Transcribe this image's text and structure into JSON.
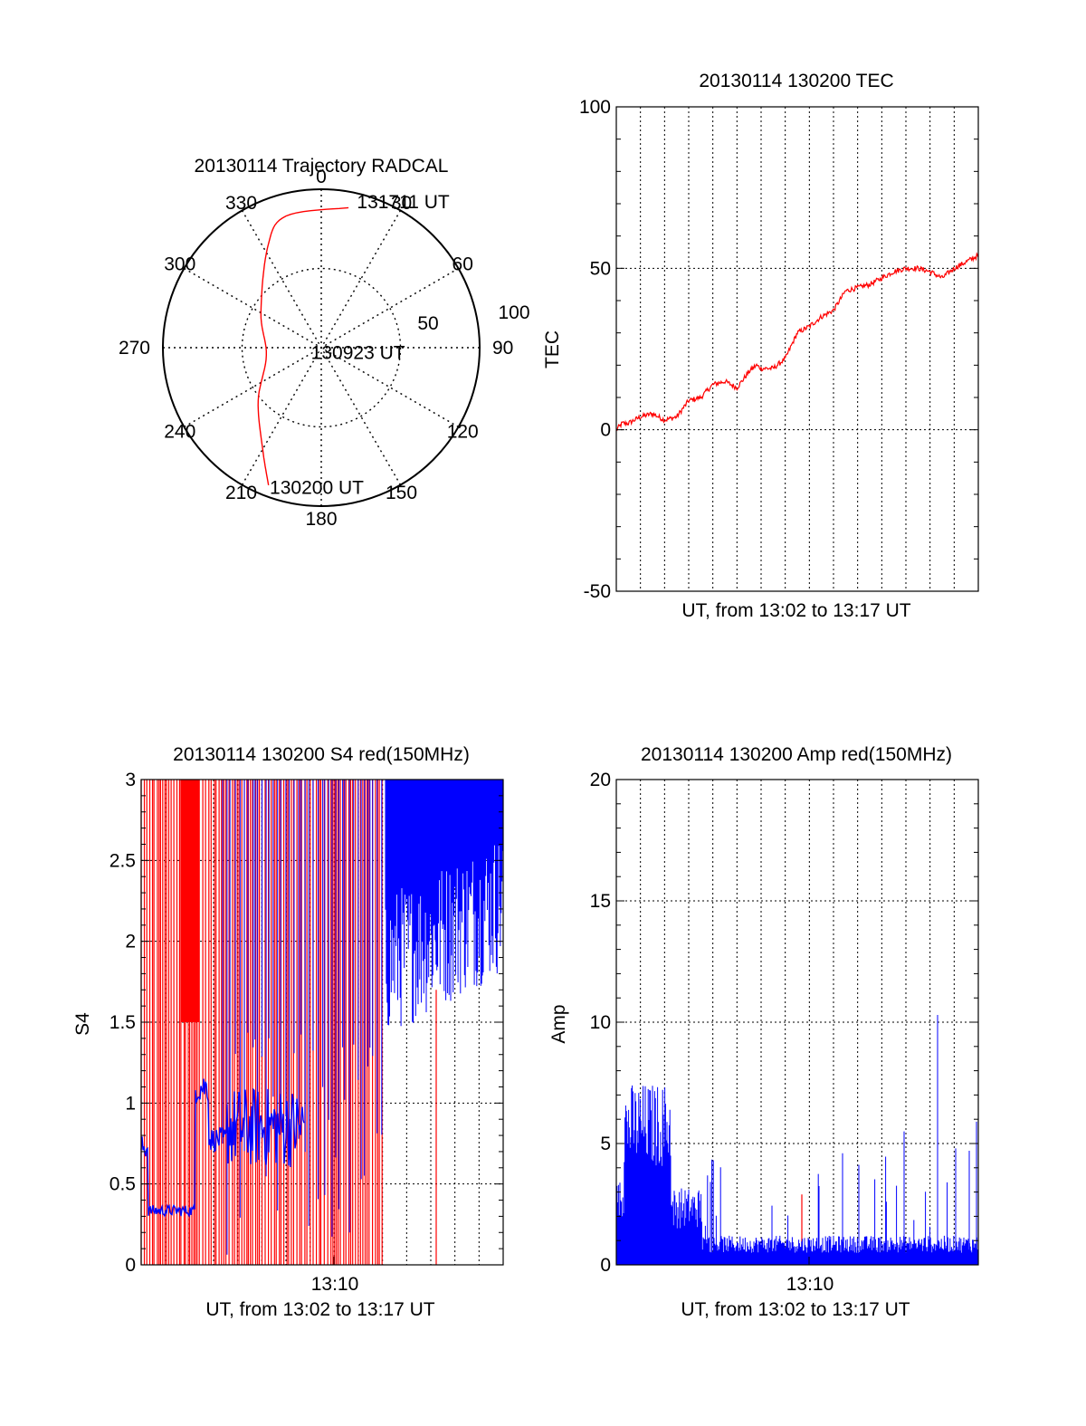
{
  "colors": {
    "red": "#ff0000",
    "blue": "#0000ff",
    "axis": "#000000",
    "grid": "#000000"
  },
  "chart_data": [
    {
      "id": "trajectory",
      "type": "polar",
      "title": "20130114 Trajectory RADCAL",
      "azimuth_labels": [
        "0",
        "30",
        "60",
        "90",
        "120",
        "150",
        "180",
        "210",
        "240",
        "270",
        "300",
        "330"
      ],
      "radial_labels": [
        "50",
        "100"
      ],
      "grid": true,
      "trajectory": {
        "points": [
          {
            "az": 201,
            "r": 93
          },
          {
            "az": 210,
            "r": 74
          },
          {
            "az": 230,
            "r": 52
          },
          {
            "az": 262,
            "r": 35
          },
          {
            "az": 300,
            "r": 44
          },
          {
            "az": 332,
            "r": 72
          },
          {
            "az": 345,
            "r": 86
          },
          {
            "az": 11,
            "r": 90
          }
        ],
        "labels": [
          {
            "text": "131711 UT",
            "az": 13,
            "r": 95
          },
          {
            "text": "130923 UT",
            "az": 252,
            "r": 8
          },
          {
            "text": "130200 UT",
            "az": 201,
            "r": 94
          }
        ]
      }
    },
    {
      "id": "tec",
      "type": "line",
      "title": "20130114 130200 TEC",
      "xlabel": "UT, from 13:02 to 13:17 UT",
      "ylabel": "TEC",
      "ylim": [
        -50,
        100
      ],
      "yticks": [
        "-50",
        "0",
        "50",
        "100"
      ],
      "grid": true,
      "series": [
        {
          "color": "red",
          "x": [
            0,
            0.25,
            0.5,
            1,
            1.5,
            2,
            2.5,
            3,
            3.5,
            4,
            4.5,
            5,
            5.5,
            5.8,
            6,
            6.5,
            7,
            7.5,
            8,
            8.5,
            9,
            9.5,
            10,
            10.5,
            11,
            11.5,
            12,
            12.5,
            13,
            13.5,
            14,
            14.5,
            15
          ],
          "y": [
            0,
            2,
            2,
            4,
            5,
            3,
            4,
            9,
            10,
            14,
            15,
            13,
            18,
            20,
            19,
            19,
            22,
            30,
            32,
            35,
            37,
            43,
            44,
            45,
            47,
            49,
            50,
            50,
            49,
            47,
            50,
            52,
            54
          ]
        }
      ]
    },
    {
      "id": "s4",
      "type": "line",
      "title": "20130114 130200 S4 red(150MHz)",
      "xlabel": "UT, from 13:02 to 13:17 UT",
      "xtick": "13:10",
      "ylabel": "S4",
      "ylim": [
        0,
        3
      ],
      "yticks": [
        "0",
        "0.5",
        "1",
        "1.5",
        "2",
        "2.5",
        "3"
      ],
      "grid": true,
      "series": [
        {
          "name": "",
          "color": "red"
        },
        {
          "name": "",
          "color": "blue"
        }
      ]
    },
    {
      "id": "amp",
      "type": "line",
      "title": "20130114 130200 Amp red(150MHz)",
      "xlabel": "UT, from 13:02 to 13:17 UT",
      "xtick": "13:10",
      "ylabel": "Amp",
      "ylim": [
        0,
        20
      ],
      "yticks": [
        "0",
        "5",
        "10",
        "15",
        "20"
      ],
      "grid": true,
      "series": [
        {
          "name": "",
          "color": "red"
        },
        {
          "name": "",
          "color": "blue"
        }
      ]
    }
  ]
}
